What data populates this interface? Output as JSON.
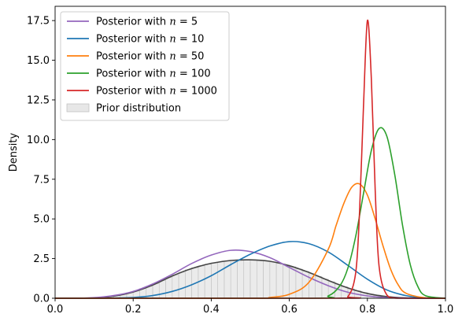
{
  "chart_data": {
    "type": "line",
    "title": "",
    "xlabel": "",
    "ylabel": "Density",
    "xlim": [
      0.0,
      1.0
    ],
    "ylim": [
      0.0,
      18.4
    ],
    "x_ticks": [
      0.0,
      0.2,
      0.4,
      0.6,
      0.8,
      1.0
    ],
    "x_tick_labels": [
      "0.0",
      "0.2",
      "0.4",
      "0.6",
      "0.8",
      "1.0"
    ],
    "y_ticks": [
      0.0,
      2.5,
      5.0,
      7.5,
      10.0,
      12.5,
      15.0,
      17.5
    ],
    "y_tick_labels": [
      "0.0",
      "2.5",
      "5.0",
      "7.5",
      "10.0",
      "12.5",
      "15.0",
      "17.5"
    ],
    "grid": false,
    "legend_position": "upper-left",
    "series": [
      {
        "name": "Posterior with n = 5",
        "legend_prefix": "Posterior with ",
        "legend_math": "n",
        "legend_suffix": " = 5",
        "color": "#9467bd",
        "x": [
          0.0,
          0.05,
          0.1,
          0.15,
          0.2,
          0.25,
          0.3,
          0.35,
          0.4,
          0.45,
          0.5,
          0.55,
          0.6,
          0.65,
          0.7,
          0.75,
          0.8,
          0.85,
          0.9,
          1.0
        ],
        "y": [
          0.0,
          0.0,
          0.04,
          0.17,
          0.43,
          0.9,
          1.51,
          2.19,
          2.72,
          3.02,
          2.94,
          2.56,
          1.94,
          1.32,
          0.79,
          0.38,
          0.15,
          0.04,
          0.01,
          0.0
        ]
      },
      {
        "name": "Posterior with n = 10",
        "legend_prefix": "Posterior with ",
        "legend_math": "n",
        "legend_suffix": " = 10",
        "color": "#1f77b4",
        "x": [
          0.0,
          0.1,
          0.2,
          0.25,
          0.3,
          0.35,
          0.4,
          0.45,
          0.5,
          0.55,
          0.6,
          0.65,
          0.7,
          0.75,
          0.8,
          0.85,
          0.9,
          0.95,
          1.0
        ],
        "y": [
          0.0,
          0.0,
          0.05,
          0.17,
          0.43,
          0.85,
          1.42,
          2.12,
          2.77,
          3.29,
          3.57,
          3.44,
          2.91,
          2.07,
          1.2,
          0.52,
          0.16,
          0.02,
          0.0
        ]
      },
      {
        "name": "Posterior with n = 50",
        "legend_prefix": "Posterior with ",
        "legend_math": "n",
        "legend_suffix": " = 50",
        "color": "#ff7f0e",
        "x": [
          0.0,
          0.5,
          0.55,
          0.6,
          0.65,
          0.7,
          0.72,
          0.74,
          0.76,
          0.78,
          0.8,
          0.82,
          0.84,
          0.86,
          0.88,
          0.9,
          0.95,
          1.0
        ],
        "y": [
          0.0,
          0.0,
          0.05,
          0.25,
          1.0,
          3.1,
          4.6,
          6.0,
          7.0,
          7.2,
          6.5,
          5.0,
          3.3,
          1.8,
          0.8,
          0.3,
          0.02,
          0.0
        ]
      },
      {
        "name": "Posterior with n = 100",
        "legend_prefix": "Posterior with ",
        "legend_math": "n",
        "legend_suffix": " = 100",
        "color": "#2ca02c",
        "x": [
          0.0,
          0.65,
          0.7,
          0.73,
          0.75,
          0.77,
          0.79,
          0.81,
          0.83,
          0.85,
          0.87,
          0.89,
          0.91,
          0.93,
          0.95,
          1.0
        ],
        "y": [
          0.0,
          0.0,
          0.15,
          0.8,
          1.9,
          3.9,
          6.6,
          9.3,
          10.7,
          10.2,
          7.8,
          4.6,
          2.1,
          0.7,
          0.15,
          0.0
        ]
      },
      {
        "name": "Posterior with n = 1000",
        "legend_prefix": "Posterior with ",
        "legend_math": "n",
        "legend_suffix": " = 1000",
        "color": "#d62728",
        "x": [
          0.0,
          0.72,
          0.75,
          0.77,
          0.78,
          0.79,
          0.8,
          0.81,
          0.82,
          0.83,
          0.85,
          0.88,
          1.0
        ],
        "y": [
          0.0,
          0.0,
          0.1,
          1.6,
          5.5,
          12.1,
          17.5,
          13.9,
          6.8,
          2.0,
          0.2,
          0.0,
          0.0
        ]
      }
    ],
    "prior": {
      "name": "Prior distribution",
      "fill_color": "#d3d3d3",
      "line_color": "#444444",
      "x": [
        0.0,
        0.1,
        0.15,
        0.2,
        0.25,
        0.3,
        0.35,
        0.4,
        0.45,
        0.5,
        0.55,
        0.6,
        0.65,
        0.7,
        0.75,
        0.8,
        0.85,
        0.9,
        1.0
      ],
      "y": [
        0.0,
        0.02,
        0.13,
        0.39,
        0.83,
        1.4,
        1.87,
        2.2,
        2.38,
        2.42,
        2.33,
        2.05,
        1.63,
        1.12,
        0.65,
        0.3,
        0.1,
        0.02,
        0.0
      ]
    }
  }
}
